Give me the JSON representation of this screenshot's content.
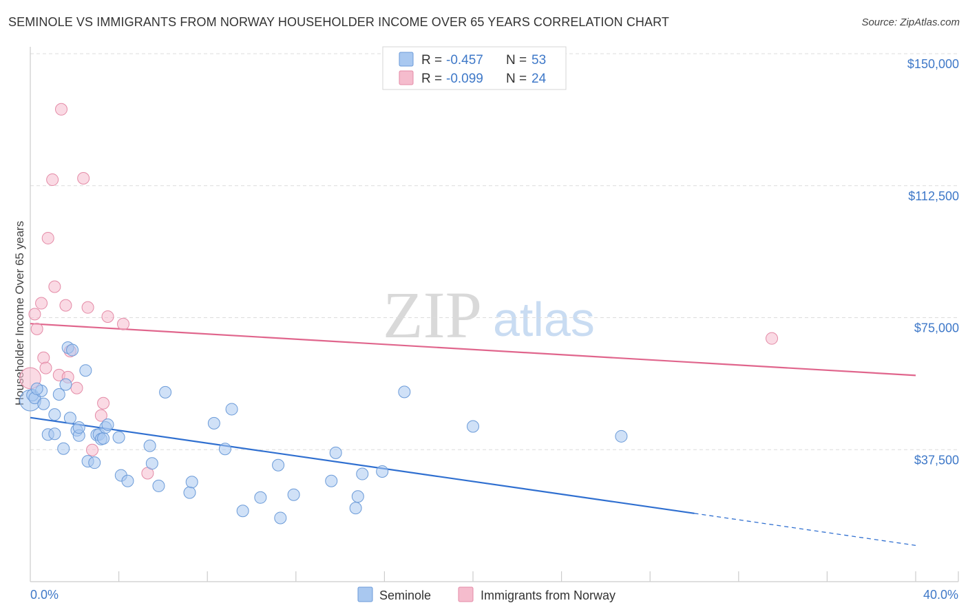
{
  "title": "SEMINOLE VS IMMIGRANTS FROM NORWAY HOUSEHOLDER INCOME OVER 65 YEARS CORRELATION CHART",
  "source": "Source: ZipAtlas.com",
  "watermark": {
    "zip": "ZIP",
    "atlas": "atlas"
  },
  "colors": {
    "blue_fill": "#a9c8f0",
    "blue_stroke": "#6a9ad8",
    "blue_line": "#2f6fd0",
    "pink_fill": "#f5bccd",
    "pink_stroke": "#e48aa6",
    "pink_line": "#e0658c",
    "grid": "#dcdcdc",
    "label": "#3e78c8"
  },
  "legend": {
    "rows": [
      {
        "r_label": "R =",
        "r_value": "-0.457",
        "n_label": "N =",
        "n_value": "53"
      },
      {
        "r_label": "R =",
        "r_value": "-0.099",
        "n_label": "N =",
        "n_value": "24"
      }
    ]
  },
  "chart_data": {
    "type": "scatter",
    "title": "SEMINOLE VS IMMIGRANTS FROM NORWAY HOUSEHOLDER INCOME OVER 65 YEARS CORRELATION CHART",
    "xlabel": "",
    "ylabel": "Householder Income Over 65 years",
    "xlim": [
      0,
      40
    ],
    "ylim": [
      0,
      150000
    ],
    "x_tick_labels": [
      "0.0%",
      "40.0%"
    ],
    "y_ticks": [
      37500,
      75000,
      112500,
      150000
    ],
    "y_tick_labels": [
      "$37,500",
      "$75,000",
      "$112,500",
      "$150,000"
    ],
    "legend_position": "top-center",
    "series": [
      {
        "name": "Seminole",
        "color": "blue",
        "R": -0.457,
        "N": 53,
        "trend": {
          "x0": 0,
          "y0": 46600,
          "x1": 30,
          "y1": 19400,
          "dashed_to_x": 40,
          "dashed_to_y": 10300
        },
        "points": [
          [
            0.0,
            51500,
            1.8
          ],
          [
            0.1,
            53000,
            1
          ],
          [
            0.2,
            52200,
            1
          ],
          [
            0.5,
            54200,
            1
          ],
          [
            0.6,
            50500,
            1
          ],
          [
            0.8,
            41800,
            1
          ],
          [
            1.1,
            47500,
            1
          ],
          [
            1.1,
            42000,
            1
          ],
          [
            1.3,
            53200,
            1
          ],
          [
            1.5,
            37800,
            1
          ],
          [
            1.6,
            56000,
            1
          ],
          [
            1.7,
            66500,
            1
          ],
          [
            1.8,
            46500,
            1
          ],
          [
            1.9,
            65800,
            1
          ],
          [
            2.1,
            43000,
            1
          ],
          [
            2.2,
            41500,
            1
          ],
          [
            2.2,
            43800,
            1
          ],
          [
            2.5,
            60000,
            1
          ],
          [
            2.6,
            34200,
            1
          ],
          [
            2.9,
            33800,
            1
          ],
          [
            3.0,
            41700,
            1
          ],
          [
            3.1,
            41800,
            1
          ],
          [
            3.2,
            40500,
            1
          ],
          [
            3.3,
            40700,
            1
          ],
          [
            3.4,
            43800,
            1
          ],
          [
            3.5,
            44600,
            1
          ],
          [
            4.0,
            41000,
            1
          ],
          [
            4.1,
            30200,
            1
          ],
          [
            4.4,
            28600,
            1
          ],
          [
            5.4,
            38600,
            1
          ],
          [
            5.5,
            33600,
            1
          ],
          [
            5.8,
            27200,
            1
          ],
          [
            6.1,
            53800,
            1
          ],
          [
            7.2,
            25300,
            1
          ],
          [
            7.3,
            28300,
            1
          ],
          [
            8.3,
            45000,
            1
          ],
          [
            8.8,
            37700,
            1
          ],
          [
            9.1,
            49000,
            1
          ],
          [
            9.6,
            20100,
            1
          ],
          [
            10.4,
            23900,
            1
          ],
          [
            11.2,
            33100,
            1
          ],
          [
            11.3,
            18100,
            1
          ],
          [
            11.9,
            24700,
            1
          ],
          [
            13.6,
            28600,
            1
          ],
          [
            13.8,
            36600,
            1
          ],
          [
            14.7,
            20900,
            1
          ],
          [
            14.8,
            24200,
            1
          ],
          [
            15.0,
            30600,
            1
          ],
          [
            15.9,
            31300,
            1
          ],
          [
            16.9,
            53900,
            1
          ],
          [
            20.0,
            44100,
            1
          ],
          [
            26.7,
            41300,
            1
          ],
          [
            0.3,
            54800,
            1
          ]
        ]
      },
      {
        "name": "Immigrants from Norway",
        "color": "pink",
        "R": -0.099,
        "N": 24,
        "trend": {
          "x0": 0,
          "y0": 73300,
          "x1": 40,
          "y1": 58600
        },
        "points": [
          [
            0.0,
            57800,
            1.8
          ],
          [
            0.2,
            76000,
            1
          ],
          [
            0.3,
            71800,
            1
          ],
          [
            0.5,
            79100,
            1
          ],
          [
            0.6,
            63600,
            1
          ],
          [
            0.7,
            60700,
            1
          ],
          [
            0.8,
            97600,
            1
          ],
          [
            1.0,
            114200,
            1
          ],
          [
            1.1,
            83800,
            1
          ],
          [
            1.3,
            58700,
            1
          ],
          [
            1.4,
            134200,
            1
          ],
          [
            1.6,
            78500,
            1
          ],
          [
            1.7,
            58100,
            1
          ],
          [
            1.8,
            65500,
            1
          ],
          [
            2.1,
            55000,
            1
          ],
          [
            2.4,
            114600,
            1
          ],
          [
            2.6,
            77900,
            1
          ],
          [
            2.8,
            37400,
            1
          ],
          [
            3.2,
            47200,
            1
          ],
          [
            3.3,
            50700,
            1
          ],
          [
            3.5,
            75300,
            1
          ],
          [
            4.2,
            73200,
            1
          ],
          [
            5.3,
            30800,
            1
          ],
          [
            33.5,
            69100,
            1
          ]
        ]
      }
    ]
  },
  "bottom_legend": [
    {
      "label": "Seminole"
    },
    {
      "label": "Immigrants from Norway"
    }
  ]
}
